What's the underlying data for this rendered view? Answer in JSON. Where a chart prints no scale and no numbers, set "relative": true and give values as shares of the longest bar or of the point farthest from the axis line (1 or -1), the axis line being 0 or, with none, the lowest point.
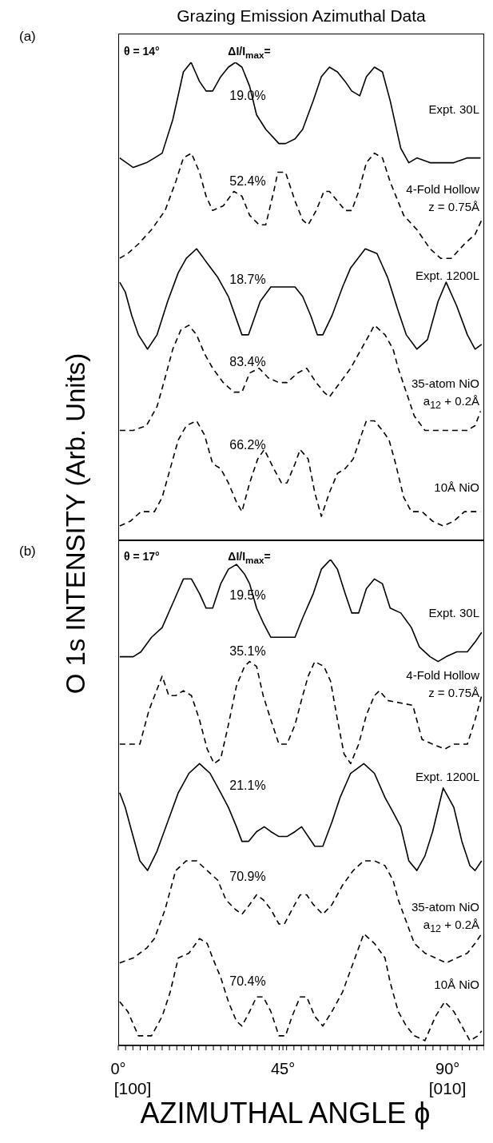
{
  "chart_data": [
    {
      "type": "line",
      "title": "Grazing Emission Azimuthal Data",
      "ylabel": "O 1s INTENSITY (Arb. Units)",
      "relative": true,
      "tick_labels": false,
      "xlim": [
        0,
        100
      ],
      "annotations": [
        "(a)",
        "θ = 14°",
        "ΔI/I$_{max}$=",
        "19.0%",
        "52.4%",
        "18.7%",
        "83.4%",
        "66.2%"
      ],
      "series": [
        {
          "name": "Expt. 30L",
          "color": "#000000",
          "line_style": "solid",
          "x": [
            0.4,
            4.1,
            7.7,
            9.9,
            12.0,
            14.9,
            17.8,
            19.9,
            22.2,
            24.0,
            25.8,
            28.0,
            30.1,
            32.0,
            33.8,
            35.9,
            37.8,
            40.3,
            43.9,
            45.7,
            48.3,
            50.4,
            53.3,
            55.5,
            57.7,
            59.9,
            62.0,
            63.8,
            66.0,
            67.8,
            70.0,
            72.2,
            74.3,
            77.2,
            79.4,
            81.6,
            85.2,
            88.8,
            91.7,
            95.4,
            99.0
          ],
          "values": [
            0.8,
            0.78,
            0.79,
            0.8,
            0.81,
            0.88,
            0.98,
            1.0,
            0.96,
            0.94,
            0.94,
            0.97,
            0.99,
            1.0,
            0.99,
            0.95,
            0.89,
            0.86,
            0.83,
            0.83,
            0.84,
            0.86,
            0.92,
            0.97,
            0.99,
            0.98,
            0.96,
            0.94,
            0.93,
            0.97,
            0.99,
            0.98,
            0.92,
            0.82,
            0.79,
            0.8,
            0.79,
            0.79,
            0.79,
            0.8,
            0.8
          ]
        },
        {
          "name": "4-Fold Hollow z = 0.75Å",
          "color": "#000000",
          "line_style": "dashed",
          "x": [
            0.4,
            2.6,
            5.5,
            9.1,
            12.8,
            15.7,
            17.8,
            20.0,
            22.2,
            24.0,
            25.8,
            28.7,
            31.6,
            33.8,
            35.9,
            38.5,
            40.3,
            42.5,
            43.6,
            45.7,
            48.3,
            50.4,
            51.9,
            54.1,
            56.2,
            57.7,
            59.9,
            62.0,
            63.8,
            65.7,
            67.8,
            70.0,
            72.2,
            74.3,
            78.0,
            81.6,
            85.2,
            88.1,
            91.0,
            94.6,
            97.5,
            99.3
          ],
          "values": [
            0.59,
            0.6,
            0.62,
            0.65,
            0.69,
            0.75,
            0.8,
            0.81,
            0.77,
            0.72,
            0.69,
            0.7,
            0.73,
            0.72,
            0.68,
            0.66,
            0.66,
            0.73,
            0.77,
            0.77,
            0.71,
            0.67,
            0.66,
            0.69,
            0.73,
            0.73,
            0.71,
            0.69,
            0.69,
            0.73,
            0.79,
            0.81,
            0.8,
            0.75,
            0.68,
            0.65,
            0.61,
            0.59,
            0.59,
            0.62,
            0.64,
            0.67
          ]
        },
        {
          "name": "Expt. 1200L",
          "color": "#000000",
          "line_style": "solid",
          "x": [
            0.4,
            1.9,
            3.7,
            5.5,
            8.0,
            10.6,
            13.5,
            16.4,
            18.6,
            21.4,
            24.3,
            27.2,
            30.1,
            33.8,
            35.6,
            38.8,
            41.7,
            46.1,
            48.3,
            50.4,
            52.6,
            54.4,
            55.9,
            58.4,
            61.3,
            63.5,
            67.5,
            70.7,
            73.6,
            76.5,
            78.7,
            81.6,
            84.5,
            87.4,
            89.6,
            92.5,
            95.4,
            97.5,
            99.3
          ],
          "values": [
            0.54,
            0.52,
            0.47,
            0.43,
            0.4,
            0.43,
            0.5,
            0.56,
            0.59,
            0.61,
            0.58,
            0.55,
            0.51,
            0.43,
            0.43,
            0.5,
            0.53,
            0.53,
            0.53,
            0.51,
            0.47,
            0.43,
            0.43,
            0.47,
            0.53,
            0.57,
            0.61,
            0.6,
            0.55,
            0.48,
            0.43,
            0.4,
            0.42,
            0.5,
            0.54,
            0.49,
            0.43,
            0.4,
            0.41
          ]
        },
        {
          "name": "35-atom NiO a$_{12}$ + 0.2Å",
          "color": "#000000",
          "line_style": "dashed",
          "x": [
            0.4,
            4.1,
            7.7,
            10.6,
            12.8,
            14.9,
            17.1,
            19.3,
            21.4,
            23.6,
            25.8,
            28.7,
            31.6,
            33.8,
            35.9,
            38.5,
            41.0,
            43.9,
            46.1,
            49.0,
            51.5,
            54.1,
            56.2,
            57.7,
            60.6,
            63.5,
            66.4,
            68.6,
            70.0,
            72.9,
            75.1,
            76.5,
            80.9,
            83.8,
            87.4,
            89.6,
            92.5,
            95.4,
            97.5,
            99.0
          ],
          "values": [
            0.23,
            0.23,
            0.24,
            0.28,
            0.34,
            0.4,
            0.44,
            0.45,
            0.43,
            0.39,
            0.36,
            0.33,
            0.31,
            0.31,
            0.35,
            0.36,
            0.34,
            0.33,
            0.33,
            0.35,
            0.36,
            0.33,
            0.31,
            0.3,
            0.33,
            0.36,
            0.4,
            0.43,
            0.45,
            0.43,
            0.4,
            0.36,
            0.26,
            0.23,
            0.23,
            0.23,
            0.23,
            0.23,
            0.24,
            0.27
          ]
        },
        {
          "name": "10Å NiO",
          "color": "#000000",
          "line_style": "dashed",
          "x": [
            0.4,
            3.3,
            6.2,
            9.9,
            12.0,
            14.2,
            16.4,
            18.6,
            21.4,
            23.6,
            25.8,
            28.0,
            30.1,
            32.3,
            33.8,
            35.9,
            38.1,
            39.9,
            42.5,
            44.6,
            46.1,
            48.3,
            49.7,
            51.9,
            53.7,
            55.5,
            57.7,
            59.9,
            62.0,
            64.2,
            66.4,
            67.8,
            70.0,
            72.2,
            74.0,
            75.8,
            78.0,
            80.1,
            83.0,
            85.9,
            88.8,
            91.7,
            94.6,
            97.5,
            99.0
          ],
          "values": [
            0.03,
            0.04,
            0.06,
            0.06,
            0.09,
            0.15,
            0.21,
            0.24,
            0.25,
            0.22,
            0.16,
            0.15,
            0.12,
            0.08,
            0.06,
            0.12,
            0.17,
            0.19,
            0.15,
            0.12,
            0.12,
            0.16,
            0.19,
            0.17,
            0.1,
            0.05,
            0.1,
            0.14,
            0.15,
            0.17,
            0.22,
            0.25,
            0.25,
            0.23,
            0.21,
            0.16,
            0.09,
            0.06,
            0.06,
            0.04,
            0.03,
            0.04,
            0.06,
            0.06,
            0.06
          ]
        }
      ]
    },
    {
      "type": "line",
      "xlabel": "AZIMUTHAL ANGLE ϕ",
      "relative": true,
      "tick_labels": "x",
      "xlim": [
        0,
        100
      ],
      "xticks": [
        {
          "value": 0,
          "label": "0°"
        },
        {
          "value": 2,
          "label": null
        },
        {
          "value": 4,
          "label": null
        },
        {
          "value": 6,
          "label": null
        },
        {
          "value": 8,
          "label": null
        },
        {
          "value": 10,
          "label": null
        },
        {
          "value": 12,
          "label": null
        },
        {
          "value": 14,
          "label": null
        },
        {
          "value": 16,
          "label": null
        },
        {
          "value": 18,
          "label": null
        },
        {
          "value": 20,
          "label": null
        },
        {
          "value": 22,
          "label": null
        },
        {
          "value": 24,
          "label": null
        },
        {
          "value": 26,
          "label": null
        },
        {
          "value": 28,
          "label": null
        },
        {
          "value": 30,
          "label": null
        },
        {
          "value": 32,
          "label": null
        },
        {
          "value": 34,
          "label": null
        },
        {
          "value": 36,
          "label": null
        },
        {
          "value": 38,
          "label": null
        },
        {
          "value": 40,
          "label": null
        },
        {
          "value": 42,
          "label": null
        },
        {
          "value": 44,
          "label": null
        },
        {
          "value": 45,
          "label": "45°"
        },
        {
          "value": 46,
          "label": null
        },
        {
          "value": 48,
          "label": null
        },
        {
          "value": 50,
          "label": null
        },
        {
          "value": 52,
          "label": null
        },
        {
          "value": 54,
          "label": null
        },
        {
          "value": 56,
          "label": null
        },
        {
          "value": 58,
          "label": null
        },
        {
          "value": 60,
          "label": null
        },
        {
          "value": 62,
          "label": null
        },
        {
          "value": 64,
          "label": null
        },
        {
          "value": 66,
          "label": null
        },
        {
          "value": 68,
          "label": null
        },
        {
          "value": 70,
          "label": null
        },
        {
          "value": 72,
          "label": null
        },
        {
          "value": 74,
          "label": null
        },
        {
          "value": 76,
          "label": null
        },
        {
          "value": 78,
          "label": null
        },
        {
          "value": 80,
          "label": null
        },
        {
          "value": 82,
          "label": null
        },
        {
          "value": 84,
          "label": null
        },
        {
          "value": 86,
          "label": null
        },
        {
          "value": 88,
          "label": null
        },
        {
          "value": 90,
          "label": "90°"
        },
        {
          "value": 92,
          "label": null
        },
        {
          "value": 94,
          "label": null
        },
        {
          "value": 96,
          "label": null
        },
        {
          "value": 98,
          "label": null
        },
        {
          "value": 100,
          "label": null
        }
      ],
      "annotations": [
        "(b)",
        "θ = 17°",
        "ΔI/I$_{max}$=",
        "19.5%",
        "35.1%",
        "21.1%",
        "70.9%",
        "70.4%",
        "[100]",
        "[010]"
      ],
      "series": [
        {
          "name": "Expt. 30L",
          "color": "#000000",
          "line_style": "solid",
          "x": [
            0.4,
            4.1,
            6.2,
            9.1,
            12.0,
            14.9,
            17.8,
            20.0,
            22.2,
            24.0,
            25.8,
            28.0,
            30.1,
            32.3,
            34.5,
            35.9,
            37.8,
            39.6,
            41.7,
            44.6,
            48.3,
            50.4,
            53.3,
            55.5,
            58.0,
            59.9,
            62.0,
            63.8,
            65.7,
            67.8,
            70.0,
            72.2,
            74.3,
            77.2,
            80.1,
            82.3,
            85.2,
            87.4,
            89.6,
            92.5,
            95.4,
            97.5,
            99.3
          ],
          "values": [
            0.8,
            0.8,
            0.81,
            0.84,
            0.86,
            0.91,
            0.96,
            0.96,
            0.93,
            0.9,
            0.9,
            0.95,
            0.98,
            0.99,
            0.97,
            0.95,
            0.9,
            0.87,
            0.84,
            0.84,
            0.84,
            0.88,
            0.93,
            0.98,
            1.0,
            0.98,
            0.93,
            0.89,
            0.89,
            0.94,
            0.96,
            0.95,
            0.9,
            0.89,
            0.86,
            0.82,
            0.8,
            0.79,
            0.8,
            0.81,
            0.81,
            0.83,
            0.85
          ]
        },
        {
          "name": "4-Fold Hollow z = 0.75Å",
          "color": "#000000",
          "line_style": "dashed",
          "x": [
            0.4,
            2.6,
            5.9,
            8.4,
            12.0,
            13.8,
            15.7,
            17.8,
            20.0,
            22.2,
            24.3,
            26.2,
            28.0,
            30.1,
            32.3,
            34.5,
            35.9,
            37.8,
            39.6,
            41.7,
            43.9,
            46.1,
            48.3,
            50.4,
            51.9,
            53.7,
            56.2,
            58.0,
            59.9,
            61.7,
            63.5,
            65.7,
            67.8,
            70.0,
            71.4,
            73.6,
            80.5,
            83.0,
            85.9,
            89.2,
            91.7,
            95.4,
            97.5,
            99.3
          ],
          "values": [
            0.62,
            0.62,
            0.62,
            0.69,
            0.76,
            0.72,
            0.72,
            0.73,
            0.72,
            0.67,
            0.61,
            0.58,
            0.59,
            0.66,
            0.74,
            0.78,
            0.79,
            0.78,
            0.72,
            0.67,
            0.62,
            0.62,
            0.66,
            0.72,
            0.76,
            0.79,
            0.78,
            0.75,
            0.67,
            0.6,
            0.58,
            0.62,
            0.68,
            0.72,
            0.73,
            0.71,
            0.7,
            0.63,
            0.62,
            0.61,
            0.62,
            0.62,
            0.67,
            0.72
          ]
        },
        {
          "name": "Expt. 1200L",
          "color": "#000000",
          "line_style": "solid",
          "x": [
            0.4,
            1.9,
            3.7,
            5.9,
            8.0,
            10.6,
            13.5,
            16.4,
            19.3,
            22.2,
            25.1,
            28.0,
            30.1,
            32.3,
            33.8,
            35.6,
            37.8,
            39.9,
            41.7,
            43.9,
            46.1,
            48.3,
            50.1,
            51.9,
            53.7,
            55.9,
            58.4,
            60.6,
            63.5,
            67.1,
            70.0,
            72.9,
            75.1,
            77.2,
            79.4,
            81.6,
            83.8,
            85.9,
            88.8,
            91.7,
            93.9,
            96.1,
            97.5,
            99.3
          ],
          "values": [
            0.52,
            0.49,
            0.44,
            0.38,
            0.36,
            0.4,
            0.46,
            0.52,
            0.56,
            0.58,
            0.56,
            0.52,
            0.49,
            0.45,
            0.42,
            0.42,
            0.44,
            0.45,
            0.44,
            0.43,
            0.43,
            0.44,
            0.45,
            0.43,
            0.41,
            0.41,
            0.46,
            0.51,
            0.56,
            0.58,
            0.56,
            0.51,
            0.48,
            0.45,
            0.38,
            0.36,
            0.39,
            0.44,
            0.53,
            0.49,
            0.42,
            0.37,
            0.36,
            0.38
          ]
        },
        {
          "name": "35-atom NiO a$_{12}$ + 0.2Å",
          "color": "#000000",
          "line_style": "dashed",
          "x": [
            0.4,
            4.1,
            7.7,
            9.9,
            12.8,
            15.7,
            18.6,
            21.4,
            24.3,
            27.2,
            29.4,
            32.0,
            33.8,
            35.9,
            37.8,
            39.6,
            41.7,
            43.9,
            45.4,
            47.5,
            49.7,
            51.5,
            53.3,
            55.9,
            58.4,
            61.3,
            64.2,
            67.1,
            70.0,
            72.9,
            75.1,
            76.5,
            80.9,
            83.8,
            86.7,
            89.6,
            92.5,
            95.4,
            97.5,
            99.3
          ],
          "values": [
            0.17,
            0.18,
            0.2,
            0.22,
            0.28,
            0.36,
            0.38,
            0.38,
            0.36,
            0.34,
            0.3,
            0.28,
            0.27,
            0.29,
            0.31,
            0.3,
            0.28,
            0.25,
            0.25,
            0.28,
            0.31,
            0.31,
            0.29,
            0.27,
            0.29,
            0.33,
            0.36,
            0.38,
            0.38,
            0.37,
            0.34,
            0.3,
            0.21,
            0.19,
            0.18,
            0.17,
            0.18,
            0.19,
            0.21,
            0.23
          ]
        },
        {
          "name": "10Å NiO",
          "color": "#000000",
          "line_style": "dashed",
          "x": [
            0.4,
            2.6,
            5.5,
            9.1,
            12.0,
            14.2,
            16.4,
            19.3,
            22.2,
            24.3,
            25.8,
            28.0,
            30.1,
            32.3,
            33.8,
            35.9,
            37.8,
            39.6,
            41.7,
            43.9,
            45.7,
            47.5,
            49.7,
            51.5,
            53.7,
            55.9,
            58.4,
            61.3,
            64.2,
            67.1,
            70.0,
            72.9,
            74.3,
            76.5,
            78.7,
            80.9,
            83.8,
            86.7,
            89.2,
            91.7,
            93.9,
            96.1,
            98.3,
            99.3
          ],
          "values": [
            0.09,
            0.07,
            0.02,
            0.02,
            0.06,
            0.11,
            0.18,
            0.19,
            0.22,
            0.21,
            0.18,
            0.14,
            0.09,
            0.05,
            0.04,
            0.07,
            0.1,
            0.1,
            0.07,
            0.02,
            0.02,
            0.06,
            0.1,
            0.1,
            0.06,
            0.04,
            0.07,
            0.11,
            0.17,
            0.23,
            0.21,
            0.18,
            0.13,
            0.07,
            0.04,
            0.02,
            0.01,
            0.06,
            0.09,
            0.07,
            0.04,
            0.01,
            0.02,
            0.03
          ]
        }
      ]
    }
  ]
}
